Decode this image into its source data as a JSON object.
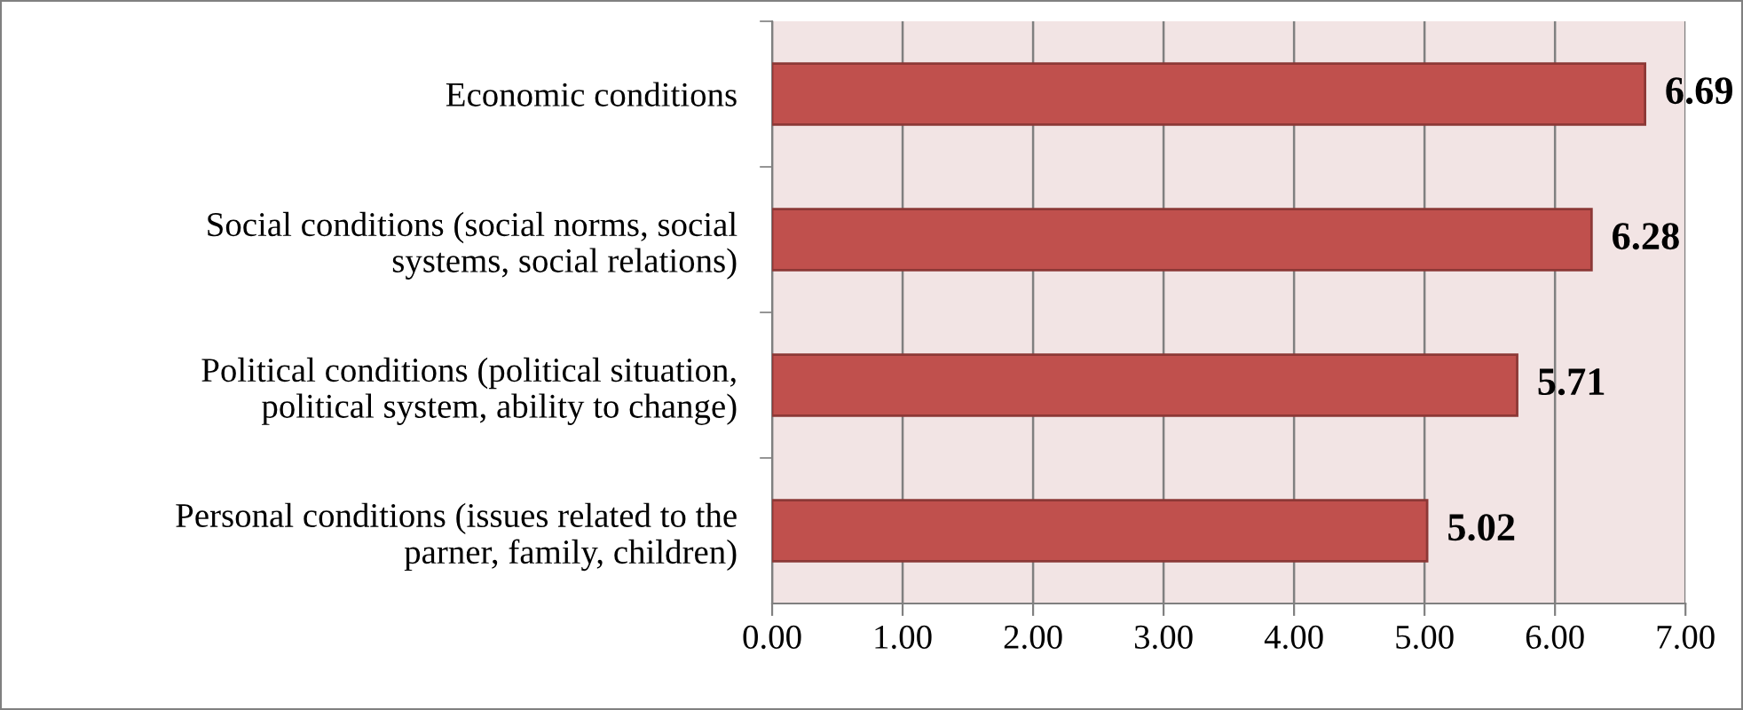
{
  "chart_data": {
    "type": "bar",
    "orientation": "horizontal",
    "categories": [
      "Economic conditions",
      "Social conditions (social norms, social\nsystems, social relations)",
      "Political conditions (political situation,\npolitical system, ability to change)",
      "Personal conditions (issues related to the\nparner, family, children)"
    ],
    "values": [
      6.69,
      6.28,
      5.71,
      5.02
    ],
    "color": "#c0504d",
    "xlim": [
      0,
      7
    ],
    "xticks": [
      {
        "value": 0,
        "label": "0.00"
      },
      {
        "value": 1,
        "label": "1.00"
      },
      {
        "value": 2,
        "label": "2.00"
      },
      {
        "value": 3,
        "label": "3.00"
      },
      {
        "value": 4,
        "label": "4.00"
      },
      {
        "value": 5,
        "label": "5.00"
      },
      {
        "value": 6,
        "label": "6.00"
      },
      {
        "value": 7,
        "label": "7.00"
      }
    ],
    "grid": "x",
    "data_labels": true,
    "legend": false
  }
}
